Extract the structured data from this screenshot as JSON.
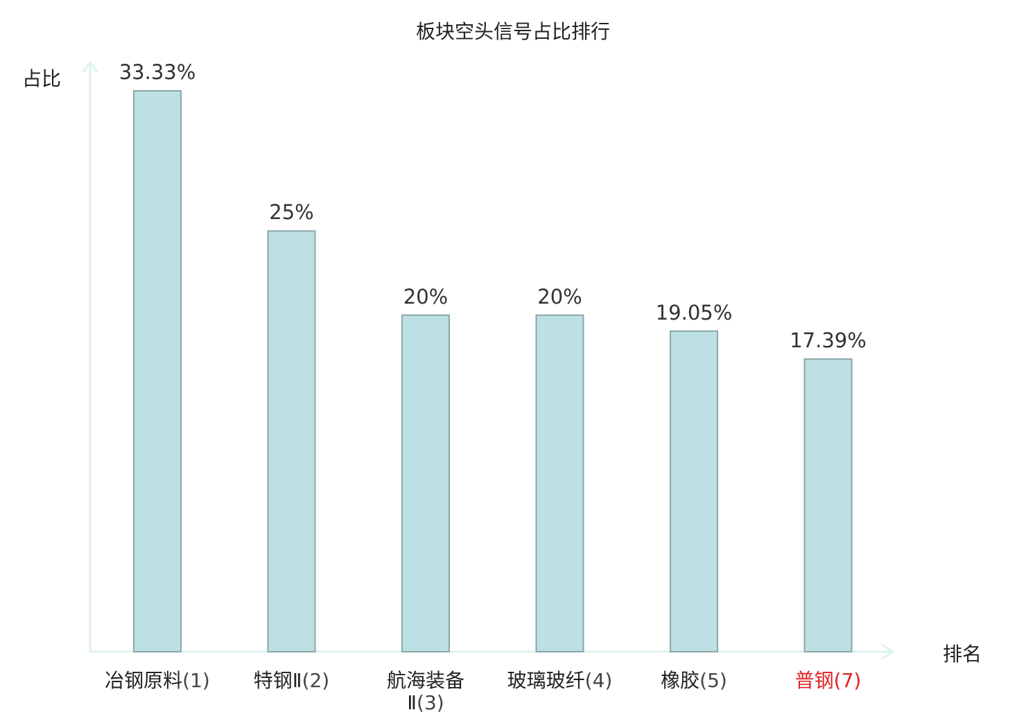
{
  "chart_data": {
    "type": "bar",
    "title": "板块空头信号占比排行",
    "ylabel": "占比",
    "xlabel": "排名",
    "categories": [
      "冶钢原料(1)",
      "特钢Ⅱ(2)",
      "航海装备Ⅱ(3)",
      "玻璃玻纤(4)",
      "橡胶(5)",
      "普钢(7)"
    ],
    "category_names": [
      "冶钢原料",
      "特钢Ⅱ",
      "航海装备Ⅱ",
      "玻璃玻纤",
      "橡胶",
      "普钢"
    ],
    "category_ranks": [
      "(1)",
      "(2)",
      "(3)",
      "(4)",
      "(5)",
      "(7)"
    ],
    "values": [
      33.33,
      25,
      20,
      20,
      19.05,
      17.39
    ],
    "value_labels": [
      "33.33%",
      "25%",
      "20%",
      "20%",
      "19.05%",
      "17.39%"
    ],
    "highlight_index": 5,
    "ylim": [
      0,
      33.33
    ],
    "grid": false,
    "colors": {
      "bar_fill": "#bce0e3",
      "bar_stroke": "#8aa7a9",
      "axis": "#dff2ef",
      "highlight_text": "#e02020"
    }
  }
}
